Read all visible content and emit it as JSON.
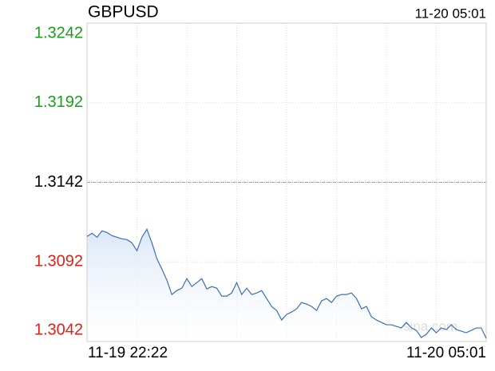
{
  "chart_data": {
    "type": "line",
    "title": "GBPUSD",
    "timestamp": "11-20 05:01",
    "watermark": "sina.com",
    "categories": [
      "11-19 22:22",
      null,
      null,
      null,
      null,
      null,
      null,
      null,
      null,
      null,
      null,
      null,
      null,
      null,
      null,
      null,
      null,
      null,
      null,
      null,
      null,
      null,
      null,
      null,
      null,
      null,
      null,
      null,
      null,
      null,
      null,
      null,
      null,
      null,
      null,
      null,
      null,
      null,
      null,
      null,
      null,
      null,
      null,
      null,
      null,
      null,
      null,
      null,
      null,
      null,
      null,
      null,
      null,
      null,
      null,
      null,
      null,
      null,
      null,
      null,
      null,
      null,
      null,
      null,
      null,
      null,
      null,
      null,
      null,
      null,
      null,
      null,
      null,
      null,
      null,
      null,
      null,
      null,
      null,
      null,
      "11-20 05:01"
    ],
    "series": [
      {
        "name": "GBPUSD",
        "color": "#3a6fb8",
        "values": [
          1.3108,
          1.311,
          1.31075,
          1.31115,
          1.31105,
          1.31085,
          1.31075,
          1.31065,
          1.3106,
          1.3104,
          1.3099,
          1.31075,
          1.31125,
          1.3104,
          1.3094,
          1.30875,
          1.30805,
          1.30715,
          1.3074,
          1.30755,
          1.30815,
          1.30765,
          1.3079,
          1.30815,
          1.3075,
          1.30765,
          1.30755,
          1.30705,
          1.30705,
          1.30725,
          1.3079,
          1.30715,
          1.30755,
          1.30715,
          1.30725,
          1.3074,
          1.3069,
          1.3064,
          1.30615,
          1.30555,
          1.3059,
          1.30605,
          1.30625,
          1.30665,
          1.30655,
          1.3064,
          1.30615,
          1.30675,
          1.3069,
          1.30665,
          1.30705,
          1.30715,
          1.30715,
          1.30725,
          1.3069,
          1.30625,
          1.3064,
          1.30575,
          1.30555,
          1.3054,
          1.30525,
          1.30525,
          1.30515,
          1.30505,
          1.3054,
          1.30505,
          1.3049,
          1.30445,
          1.30465,
          1.30505,
          1.30475,
          1.30505,
          1.30495,
          1.30525,
          1.30495,
          1.30485,
          1.30475,
          1.3049,
          1.30505,
          1.30505,
          1.3044
        ]
      }
    ],
    "ylim": [
      1.3042,
      1.3242
    ],
    "yticks": [
      1.3042,
      1.3092,
      1.3142,
      1.3192,
      1.3242
    ],
    "prev_close": 1.3142,
    "up_color": "#1a9e1a",
    "down_color": "#e0201a",
    "flat_color": "#000000",
    "grid": true
  }
}
